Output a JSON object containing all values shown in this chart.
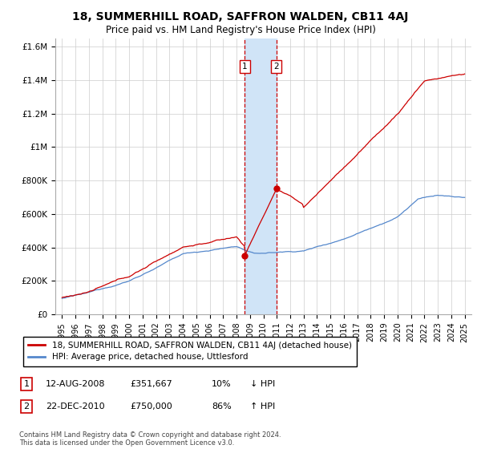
{
  "title": "18, SUMMERHILL ROAD, SAFFRON WALDEN, CB11 4AJ",
  "subtitle": "Price paid vs. HM Land Registry's House Price Index (HPI)",
  "ylabel_ticks": [
    "£0",
    "£200K",
    "£400K",
    "£600K",
    "£800K",
    "£1M",
    "£1.2M",
    "£1.4M",
    "£1.6M"
  ],
  "ytick_values": [
    0,
    200000,
    400000,
    600000,
    800000,
    1000000,
    1200000,
    1400000,
    1600000
  ],
  "ylim": [
    0,
    1650000
  ],
  "xlim_start": 1994.5,
  "xlim_end": 2025.5,
  "sale1_date": 2008.62,
  "sale1_price": 351667,
  "sale1_label": "1",
  "sale2_date": 2010.98,
  "sale2_price": 750000,
  "sale2_label": "2",
  "legend_house": "18, SUMMERHILL ROAD, SAFFRON WALDEN, CB11 4AJ (detached house)",
  "legend_hpi": "HPI: Average price, detached house, Uttlesford",
  "sale1_col1": "12-AUG-2008",
  "sale1_col2": "£351,667",
  "sale1_col3": "10%",
  "sale1_col4": "↓ HPI",
  "sale2_col1": "22-DEC-2010",
  "sale2_col2": "£750,000",
  "sale2_col3": "86%",
  "sale2_col4": "↑ HPI",
  "footnote": "Contains HM Land Registry data © Crown copyright and database right 2024.\nThis data is licensed under the Open Government Licence v3.0.",
  "house_color": "#cc0000",
  "hpi_color": "#5588cc",
  "highlight_color": "#d0e4f7",
  "xtick_years": [
    1995,
    1996,
    1997,
    1998,
    1999,
    2000,
    2001,
    2002,
    2003,
    2004,
    2005,
    2006,
    2007,
    2008,
    2009,
    2010,
    2011,
    2012,
    2013,
    2014,
    2015,
    2016,
    2017,
    2018,
    2019,
    2020,
    2021,
    2022,
    2023,
    2024,
    2025
  ]
}
